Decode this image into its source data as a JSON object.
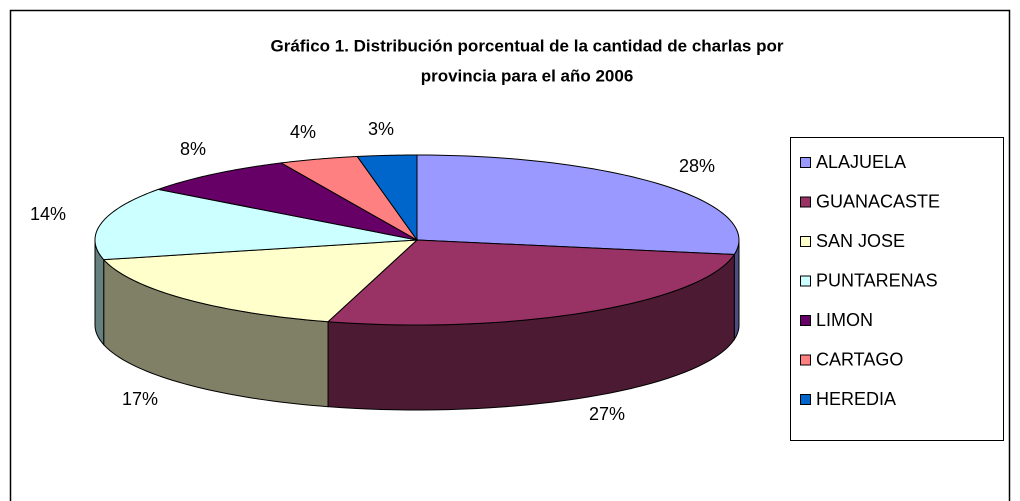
{
  "chart_data": {
    "type": "pie3d",
    "title": [
      "Gráfico 1. Distribución porcentual de la cantidad de charlas por",
      "provincia para el año 2006"
    ],
    "categories": [
      "ALAJUELA",
      "GUANACASTE",
      "SAN JOSE",
      "PUNTARENAS",
      "LIMON",
      "CARTAGO",
      "HEREDIA"
    ],
    "values": [
      28,
      27,
      17,
      14,
      8,
      4,
      3
    ],
    "value_labels": [
      "28%",
      "27%",
      "17%",
      "14%",
      "8%",
      "4%",
      "3%"
    ],
    "colors": [
      "#9999FF",
      "#993366",
      "#FFFFCC",
      "#CCFFFF",
      "#660066",
      "#FF8080",
      "#0066CC"
    ],
    "legend": "right"
  }
}
